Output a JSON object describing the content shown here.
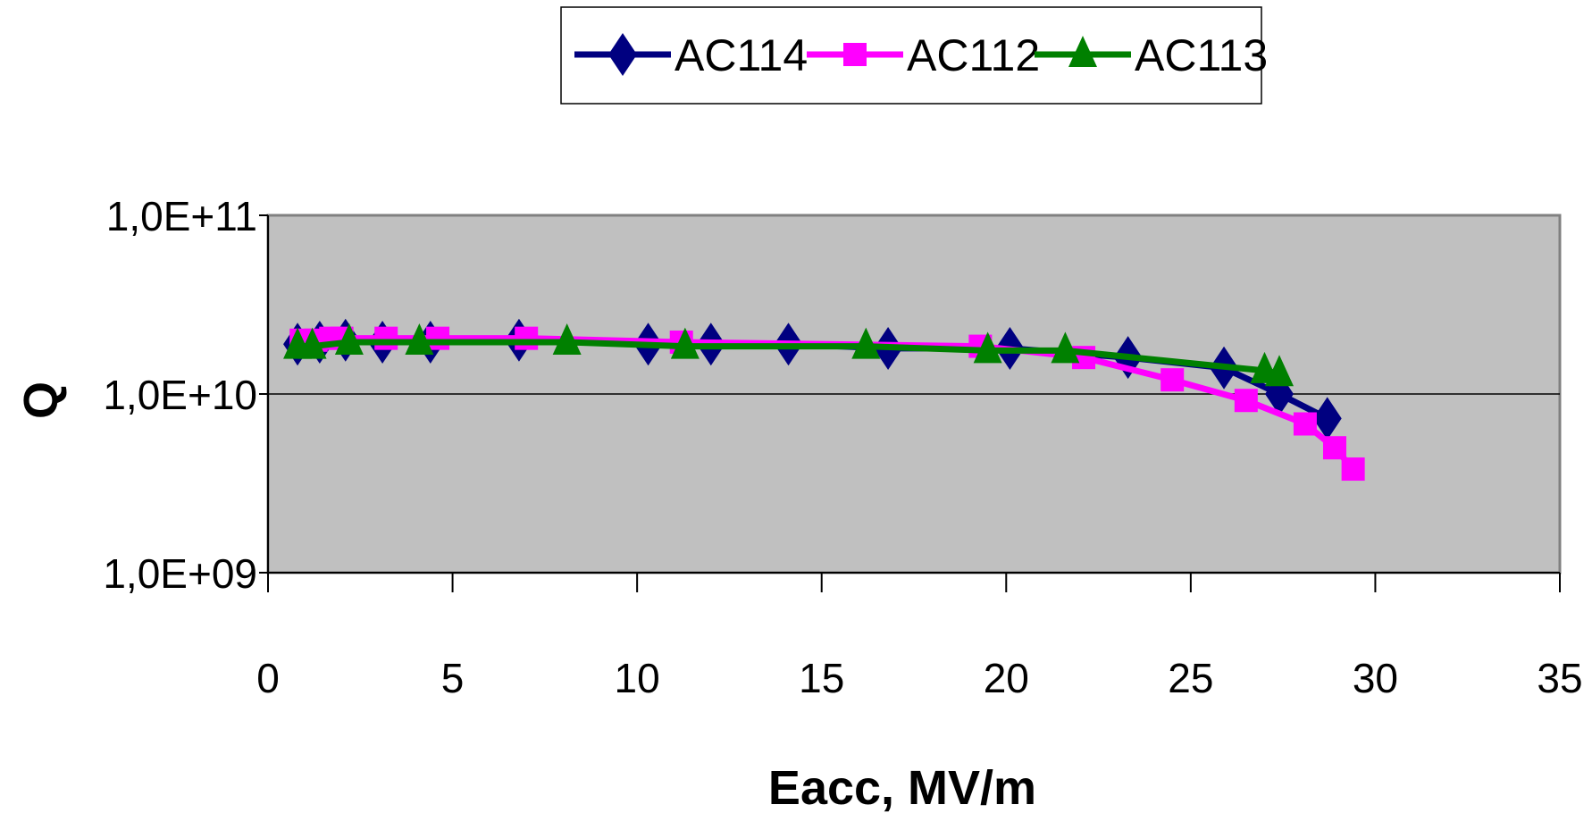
{
  "chart_data": {
    "type": "line",
    "xlabel": "Eacc, MV/m",
    "ylabel": "Q",
    "xlim": [
      0,
      35
    ],
    "ylim": [
      1000000000,
      100000000000
    ],
    "y_scale": "log",
    "x_ticks": [
      "0",
      "5",
      "10",
      "15",
      "20",
      "25",
      "30",
      "35"
    ],
    "y_ticks": [
      "1,0E+09",
      "1,0E+10",
      "1,0E+11"
    ],
    "legend_position": "top-center",
    "grid": "horizontal major gridlines",
    "plot_background": "#c0c0c0",
    "series": [
      {
        "name": "AC114",
        "color": "#000080",
        "marker": "diamond",
        "x": [
          0.8,
          1.4,
          2.1,
          3.1,
          4.4,
          6.8,
          10.3,
          12.0,
          14.1,
          16.8,
          20.1,
          23.3,
          25.9,
          27.4,
          28.7
        ],
        "y": [
          19000000000.0,
          19500000000.0,
          20000000000.0,
          19500000000.0,
          19500000000.0,
          20000000000.0,
          19000000000.0,
          19000000000.0,
          19000000000.0,
          18000000000.0,
          18000000000.0,
          16000000000.0,
          14000000000.0,
          10000000000.0,
          7300000000.0
        ]
      },
      {
        "name": "AC112",
        "color": "#ff00ff",
        "marker": "square",
        "x": [
          0.9,
          1.3,
          1.7,
          2.0,
          3.2,
          4.6,
          7.0,
          11.2,
          19.3,
          22.1,
          24.5,
          26.5,
          28.1,
          28.9,
          29.4
        ],
        "y": [
          20000000000.0,
          20000000000.0,
          20500000000.0,
          20500000000.0,
          20500000000.0,
          20500000000.0,
          20500000000.0,
          19500000000.0,
          18500000000.0,
          16000000000.0,
          12000000000.0,
          9200000000.0,
          6800000000.0,
          5000000000.0,
          3800000000.0
        ]
      },
      {
        "name": "AC113",
        "color": "#008000",
        "marker": "triangle",
        "x": [
          0.8,
          1.2,
          2.2,
          4.1,
          8.1,
          11.3,
          16.2,
          19.5,
          21.6,
          27.0,
          27.4
        ],
        "y": [
          18500000000.0,
          18500000000.0,
          19500000000.0,
          19500000000.0,
          19500000000.0,
          18500000000.0,
          18500000000.0,
          17500000000.0,
          17500000000.0,
          13500000000.0,
          13000000000.0
        ]
      }
    ]
  }
}
